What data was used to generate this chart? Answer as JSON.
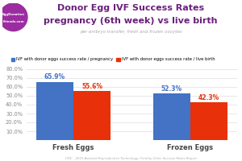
{
  "title_line1": "Donor Egg IVF Success Rates",
  "title_line2": "pregnancy (6th week) vs live birth",
  "subtitle": "per embryo transfer, fresh and frozen oocytes",
  "categories": [
    "Fresh Eggs",
    "Frozen Eggs"
  ],
  "pregnancy_values": [
    65.9,
    52.3
  ],
  "livebirth_values": [
    55.6,
    42.3
  ],
  "pregnancy_color": "#4472C4",
  "livebirth_color": "#E8300A",
  "bar_width": 0.32,
  "ylim": [
    0,
    80
  ],
  "yticks": [
    10,
    20,
    30,
    40,
    50,
    60,
    70,
    80
  ],
  "ytick_labels": [
    "10.0%",
    "20.0%",
    "30.0%",
    "40.0%",
    "50.0%",
    "60.0%",
    "70.0%",
    "80.0%"
  ],
  "legend_label_pregnancy": "IVF with donor eggs success rate / pregnancy",
  "legend_label_livebirth": "IVF with donor eggs success rate / live birth",
  "footer": "CDC - 2015 Assisted Reproductive Technology, Fertility Clinic Success Rates Report",
  "logo_text_line1": "EggDonation",
  "logo_text_line2": "Friends.com",
  "background_color": "#FFFFFF",
  "grid_color": "#DDDDDD",
  "title_color": "#6B1F7C",
  "subtitle_color": "#AAAAAA",
  "label_fontsize": 5.5,
  "axis_label_fontsize": 4.8,
  "category_fontsize": 6.0,
  "value_label_color_pregnancy": "#4472C4",
  "value_label_color_livebirth": "#E8300A",
  "logo_bg_color": "#9B2DA0",
  "logo_text_color": "#FFFFFF",
  "footer_color": "#AAAAAA"
}
